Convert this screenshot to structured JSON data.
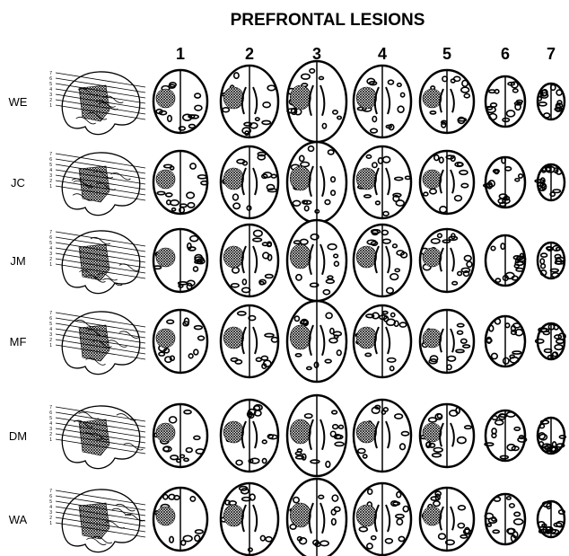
{
  "title": "PREFRONTAL LESIONS",
  "columns": [
    "1",
    "2",
    "3",
    "4",
    "5",
    "6",
    "7"
  ],
  "subjects": [
    "WE",
    "JC",
    "JM",
    "MF",
    "DM",
    "WA"
  ],
  "slice_labels": [
    "7",
    "6",
    "5",
    "4",
    "3",
    "2",
    "1"
  ]
}
